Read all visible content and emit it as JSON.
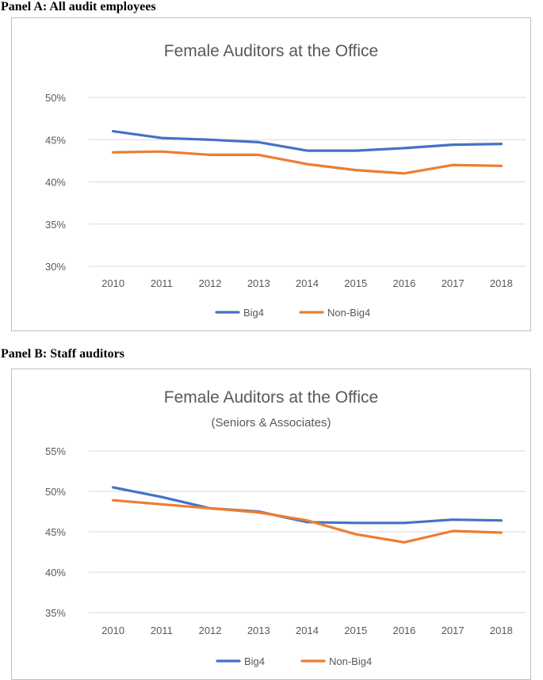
{
  "panels": [
    {
      "label": "Panel A: All audit employees",
      "chart_data": {
        "type": "line",
        "title": "Female Auditors at the Office",
        "subtitle": "",
        "categories": [
          "2010",
          "2011",
          "2012",
          "2013",
          "2014",
          "2015",
          "2016",
          "2017",
          "2018"
        ],
        "ylim": [
          30,
          50
        ],
        "yticks": [
          30,
          35,
          40,
          45,
          50
        ],
        "ytick_format": "%",
        "grid": true,
        "legend_position": "bottom",
        "series": [
          {
            "name": "Big4",
            "color": "#4472c4",
            "values": [
              46.0,
              45.2,
              45.0,
              44.7,
              43.7,
              43.7,
              44.0,
              44.4,
              44.5
            ]
          },
          {
            "name": "Non-Big4",
            "color": "#ed7d31",
            "values": [
              43.5,
              43.6,
              43.2,
              43.2,
              42.1,
              41.4,
              41.0,
              42.0,
              41.9
            ]
          }
        ]
      }
    },
    {
      "label": "Panel B: Staff auditors",
      "chart_data": {
        "type": "line",
        "title": "Female Auditors at the Office",
        "subtitle": "(Seniors & Associates)",
        "categories": [
          "2010",
          "2011",
          "2012",
          "2013",
          "2014",
          "2015",
          "2016",
          "2017",
          "2018"
        ],
        "ylim": [
          35,
          55
        ],
        "yticks": [
          35,
          40,
          45,
          50,
          55
        ],
        "ytick_format": "%",
        "grid": true,
        "legend_position": "bottom",
        "series": [
          {
            "name": "Big4",
            "color": "#4472c4",
            "values": [
              50.5,
              49.3,
              47.9,
              47.5,
              46.2,
              46.1,
              46.1,
              46.5,
              46.4
            ]
          },
          {
            "name": "Non-Big4",
            "color": "#ed7d31",
            "values": [
              48.9,
              48.4,
              47.9,
              47.4,
              46.4,
              44.7,
              43.7,
              45.1,
              44.9
            ]
          }
        ]
      }
    }
  ]
}
